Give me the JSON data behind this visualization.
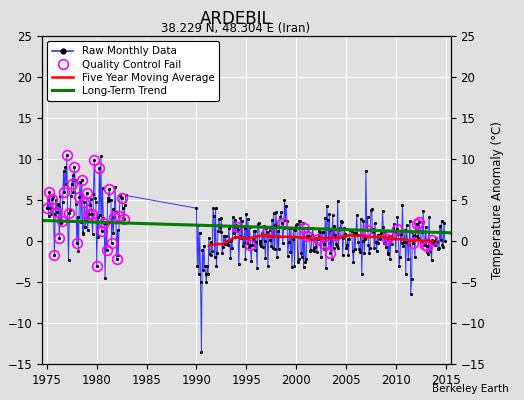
{
  "title": "ARDEBIL",
  "subtitle": "38.229 N, 48.304 E (Iran)",
  "ylabel": "Temperature Anomaly (°C)",
  "xlim": [
    1974.5,
    2015.5
  ],
  "ylim": [
    -15,
    25
  ],
  "yticks": [
    -15,
    -10,
    -5,
    0,
    5,
    10,
    15,
    20,
    25
  ],
  "xticks": [
    1975,
    1980,
    1985,
    1990,
    1995,
    2000,
    2005,
    2010,
    2015
  ],
  "watermark": "Berkeley Earth",
  "bg_color": "#e0e0e0",
  "plot_bg_color": "#e0e0e0",
  "raw_color": "#3333ff",
  "qc_color": "magenta",
  "moving_avg_color": "red",
  "trend_color": "green",
  "grid_color": "#ffffff"
}
